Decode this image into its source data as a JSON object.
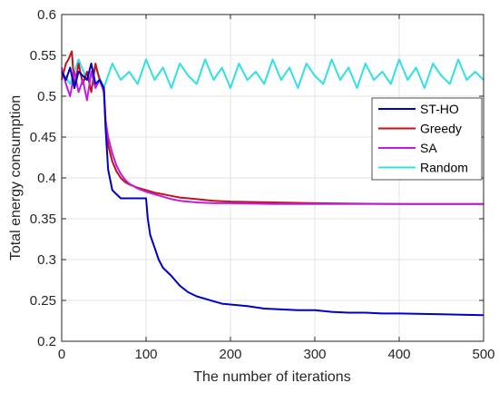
{
  "chart_data": {
    "type": "line",
    "title": "",
    "xlabel": "The number of iterations",
    "ylabel": "Total energy consumption",
    "xlim": [
      0,
      500
    ],
    "ylim": [
      0.2,
      0.6
    ],
    "xticks": [
      0,
      100,
      200,
      300,
      400,
      500
    ],
    "yticks": [
      0.2,
      0.25,
      0.3,
      0.35,
      0.4,
      0.45,
      0.5,
      0.55,
      0.6
    ],
    "xtick_labels": [
      "0",
      "100",
      "200",
      "300",
      "400",
      "500"
    ],
    "ytick_labels": [
      "0.2",
      "0.25",
      "0.3",
      "0.35",
      "0.4",
      "0.45",
      "0.5",
      "0.55",
      "0.6"
    ],
    "grid": true,
    "legend_position": "right, upper-middle",
    "series": [
      {
        "name": "ST-HO",
        "color": "#0000cd",
        "x": [
          0,
          5,
          10,
          15,
          20,
          25,
          30,
          35,
          40,
          45,
          50,
          52,
          55,
          60,
          65,
          70,
          75,
          80,
          85,
          90,
          95,
          100,
          102,
          105,
          110,
          115,
          120,
          130,
          140,
          150,
          160,
          170,
          180,
          190,
          200,
          220,
          240,
          260,
          280,
          300,
          320,
          340,
          360,
          380,
          400,
          450,
          500
        ],
        "y": [
          0.53,
          0.52,
          0.535,
          0.51,
          0.53,
          0.525,
          0.52,
          0.54,
          0.515,
          0.52,
          0.51,
          0.46,
          0.41,
          0.385,
          0.38,
          0.375,
          0.375,
          0.375,
          0.375,
          0.375,
          0.375,
          0.375,
          0.35,
          0.33,
          0.315,
          0.3,
          0.29,
          0.28,
          0.268,
          0.26,
          0.255,
          0.252,
          0.249,
          0.246,
          0.245,
          0.243,
          0.24,
          0.239,
          0.238,
          0.238,
          0.236,
          0.235,
          0.235,
          0.234,
          0.234,
          0.233,
          0.232
        ]
      },
      {
        "name": "Greedy",
        "color": "#c0141a",
        "x": [
          0,
          5,
          8,
          12,
          15,
          20,
          25,
          30,
          35,
          40,
          45,
          50,
          52,
          55,
          60,
          65,
          70,
          75,
          80,
          90,
          100,
          110,
          120,
          130,
          140,
          150,
          160,
          180,
          200,
          250,
          300,
          400,
          500
        ],
        "y": [
          0.52,
          0.54,
          0.545,
          0.555,
          0.51,
          0.54,
          0.515,
          0.53,
          0.505,
          0.54,
          0.52,
          0.51,
          0.47,
          0.44,
          0.42,
          0.408,
          0.4,
          0.395,
          0.392,
          0.388,
          0.385,
          0.382,
          0.38,
          0.378,
          0.376,
          0.375,
          0.374,
          0.372,
          0.371,
          0.37,
          0.369,
          0.368,
          0.368
        ]
      },
      {
        "name": "SA",
        "color": "#c41ce0",
        "x": [
          0,
          5,
          10,
          15,
          20,
          25,
          30,
          35,
          40,
          45,
          50,
          52,
          55,
          60,
          65,
          70,
          75,
          80,
          90,
          100,
          110,
          120,
          130,
          140,
          150,
          160,
          180,
          200,
          250,
          300,
          400,
          500
        ],
        "y": [
          0.535,
          0.515,
          0.5,
          0.53,
          0.505,
          0.52,
          0.495,
          0.53,
          0.51,
          0.52,
          0.505,
          0.47,
          0.45,
          0.43,
          0.415,
          0.405,
          0.398,
          0.393,
          0.387,
          0.383,
          0.38,
          0.377,
          0.374,
          0.372,
          0.371,
          0.37,
          0.369,
          0.369,
          0.368,
          0.368,
          0.368,
          0.368
        ]
      },
      {
        "name": "Random",
        "color": "#33e0e6",
        "x": [
          0,
          10,
          20,
          30,
          40,
          50,
          60,
          70,
          80,
          90,
          100,
          110,
          120,
          130,
          140,
          150,
          160,
          170,
          180,
          190,
          200,
          210,
          220,
          230,
          240,
          250,
          260,
          270,
          280,
          290,
          300,
          310,
          320,
          330,
          340,
          350,
          360,
          370,
          380,
          390,
          400,
          410,
          420,
          430,
          440,
          450,
          460,
          470,
          480,
          490,
          500
        ],
        "y": [
          0.53,
          0.515,
          0.545,
          0.52,
          0.535,
          0.51,
          0.54,
          0.52,
          0.53,
          0.515,
          0.545,
          0.52,
          0.535,
          0.51,
          0.54,
          0.525,
          0.515,
          0.545,
          0.52,
          0.535,
          0.51,
          0.54,
          0.52,
          0.53,
          0.515,
          0.545,
          0.52,
          0.535,
          0.51,
          0.54,
          0.525,
          0.515,
          0.545,
          0.52,
          0.535,
          0.51,
          0.54,
          0.52,
          0.53,
          0.515,
          0.545,
          0.52,
          0.535,
          0.51,
          0.54,
          0.525,
          0.515,
          0.545,
          0.52,
          0.53,
          0.52
        ]
      }
    ]
  }
}
